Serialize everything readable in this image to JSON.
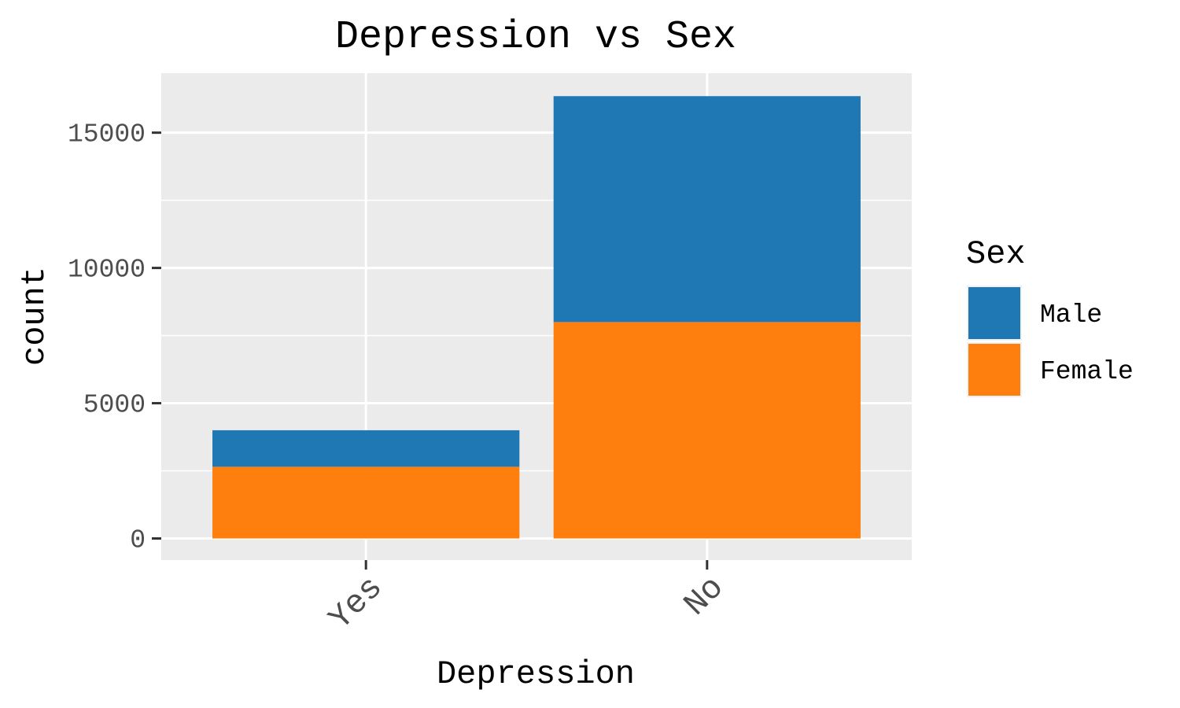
{
  "chart_data": {
    "type": "bar",
    "stacked": true,
    "title": "Depression vs Sex",
    "xlabel": "Depression",
    "ylabel": "count",
    "categories": [
      "Yes",
      "No"
    ],
    "series": [
      {
        "name": "Male",
        "values": [
          1350,
          8350
        ],
        "color": "#1f77b4"
      },
      {
        "name": "Female",
        "values": [
          2650,
          8000
        ],
        "color": "#ff7f0e"
      }
    ],
    "yticks": [
      0,
      5000,
      10000,
      15000
    ],
    "ytick_labels": [
      "0",
      "5000",
      "10000",
      "15000"
    ],
    "ylim": [
      -800,
      17200
    ],
    "grid": true,
    "legend": {
      "title": "Sex",
      "position": "right"
    }
  }
}
